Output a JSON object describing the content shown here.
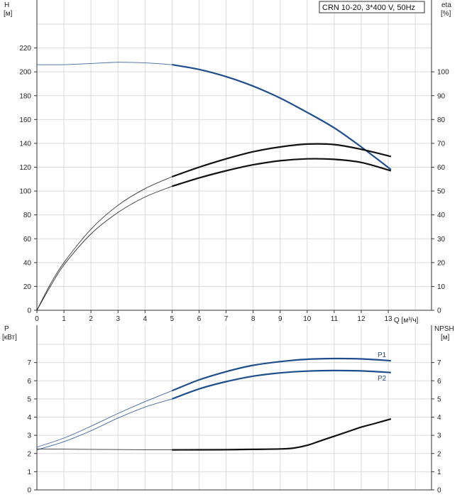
{
  "chart_data": [
    {
      "type": "line",
      "title": "CRN 10-20, 3*400 V, 50Hz",
      "y_axis_left": {
        "label": "H",
        "unit": "[м]",
        "range": [
          0,
          240
        ],
        "ticks": [
          0,
          20,
          40,
          60,
          80,
          100,
          120,
          140,
          160,
          180,
          200,
          220
        ]
      },
      "y_axis_right": {
        "label": "eta",
        "unit": "[%]",
        "range": [
          0,
          120
        ],
        "ticks": [
          0,
          10,
          20,
          30,
          40,
          50,
          60,
          70,
          80,
          90,
          100
        ]
      },
      "x_axis": {
        "label": "Q [м³/ч]",
        "range": [
          0,
          14
        ],
        "ticks": [
          0,
          1,
          2,
          3,
          4,
          5,
          6,
          7,
          8,
          9,
          10,
          11,
          12,
          13
        ]
      },
      "grid": true,
      "series": [
        {
          "color": "#1f4e8c",
          "axis": "left",
          "points": [
            [
              0,
              206
            ],
            [
              1,
              206
            ],
            [
              2,
              207
            ],
            [
              3,
              208
            ],
            [
              4,
              207.5
            ],
            [
              5,
              206
            ],
            [
              6,
              202
            ],
            [
              7,
              196
            ],
            [
              8,
              188
            ],
            [
              9,
              178
            ],
            [
              10,
              166
            ],
            [
              11,
              153
            ],
            [
              12,
              137
            ],
            [
              13.1,
              118
            ]
          ]
        },
        {
          "color": "#111111",
          "axis": "right",
          "points": [
            [
              0,
              0
            ],
            [
              0.5,
              11
            ],
            [
              1,
              20
            ],
            [
              2,
              34
            ],
            [
              3,
              44
            ],
            [
              4,
              51
            ],
            [
              5,
              56
            ],
            [
              6,
              60
            ],
            [
              7,
              63.5
            ],
            [
              8,
              66.5
            ],
            [
              9,
              68.5
            ],
            [
              10,
              69.7
            ],
            [
              11,
              69.5
            ],
            [
              12,
              67.5
            ],
            [
              13.1,
              64.5
            ]
          ]
        },
        {
          "color": "#111111",
          "axis": "right",
          "points": [
            [
              0,
              0
            ],
            [
              0.5,
              10
            ],
            [
              1,
              19
            ],
            [
              2,
              32
            ],
            [
              3,
              41
            ],
            [
              4,
              47.5
            ],
            [
              5,
              52
            ],
            [
              6,
              55.5
            ],
            [
              7,
              58.5
            ],
            [
              8,
              61
            ],
            [
              9,
              62.7
            ],
            [
              10,
              63.5
            ],
            [
              11,
              63.3
            ],
            [
              12,
              62
            ],
            [
              13.1,
              58.5
            ]
          ]
        }
      ]
    },
    {
      "type": "line",
      "y_axis_left": {
        "label": "P",
        "unit": "[кВт]",
        "range": [
          0,
          8
        ],
        "ticks": [
          0,
          1,
          2,
          3,
          4,
          5,
          6,
          7
        ]
      },
      "y_axis_right": {
        "label": "NPSH",
        "unit": "[м]",
        "range": [
          0,
          8
        ],
        "ticks": [
          0,
          1,
          2,
          3,
          4,
          5,
          6,
          7
        ]
      },
      "x_axis": {
        "range": [
          0,
          14
        ]
      },
      "grid": true,
      "series": [
        {
          "name": "P1",
          "color": "#1f4e8c",
          "axis": "left",
          "points": [
            [
              0,
              2.35
            ],
            [
              1,
              2.85
            ],
            [
              2,
              3.5
            ],
            [
              3,
              4.2
            ],
            [
              4,
              4.85
            ],
            [
              5,
              5.45
            ],
            [
              6,
              6.05
            ],
            [
              7,
              6.5
            ],
            [
              8,
              6.85
            ],
            [
              9,
              7.05
            ],
            [
              10,
              7.18
            ],
            [
              11,
              7.22
            ],
            [
              12,
              7.2
            ],
            [
              13.1,
              7.1
            ]
          ]
        },
        {
          "name": "P2",
          "color": "#1f4e8c",
          "axis": "left",
          "points": [
            [
              0,
              2.2
            ],
            [
              1,
              2.65
            ],
            [
              2,
              3.25
            ],
            [
              3,
              3.95
            ],
            [
              4,
              4.55
            ],
            [
              5,
              5.0
            ],
            [
              6,
              5.55
            ],
            [
              7,
              5.95
            ],
            [
              8,
              6.25
            ],
            [
              9,
              6.43
            ],
            [
              10,
              6.53
            ],
            [
              11,
              6.56
            ],
            [
              12,
              6.54
            ],
            [
              13.1,
              6.45
            ]
          ]
        },
        {
          "color": "#111111",
          "axis": "right",
          "points": [
            [
              0,
              2.25
            ],
            [
              2,
              2.23
            ],
            [
              4,
              2.21
            ],
            [
              5,
              2.2
            ],
            [
              7,
              2.21
            ],
            [
              8,
              2.23
            ],
            [
              9,
              2.25
            ],
            [
              9.5,
              2.3
            ],
            [
              10,
              2.45
            ],
            [
              10.5,
              2.7
            ],
            [
              11,
              2.95
            ],
            [
              11.5,
              3.2
            ],
            [
              12,
              3.45
            ],
            [
              12.5,
              3.65
            ],
            [
              13.1,
              3.9
            ]
          ]
        }
      ]
    }
  ]
}
